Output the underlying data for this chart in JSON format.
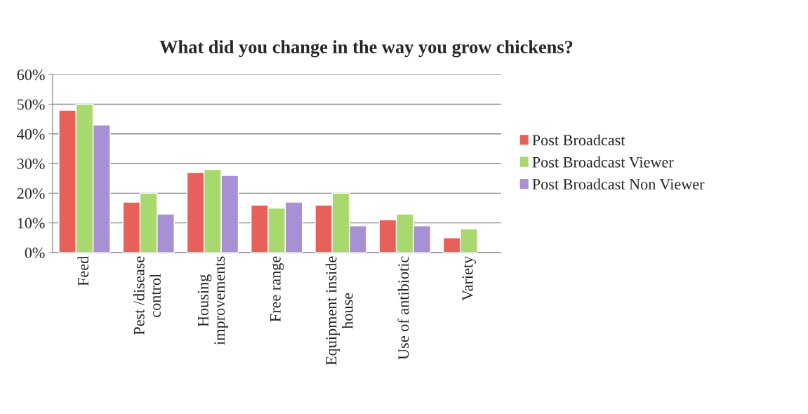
{
  "chart_data": {
    "type": "bar",
    "title": "What did you change in the way you grow chickens?",
    "categories": [
      "Feed",
      "Pest /disease\ncontrol",
      "Housing\nimprovements",
      "Free range",
      "Equipment inside\nhouse",
      "Use of antibiotic",
      "Variety"
    ],
    "series": [
      {
        "name": "Post Broadcast",
        "color": "#e8605a",
        "values": [
          48,
          17,
          27,
          16,
          16,
          11,
          5
        ]
      },
      {
        "name": "Post Broadcast Viewer",
        "color": "#a9d86e",
        "values": [
          50,
          20,
          28,
          15,
          20,
          13,
          8
        ]
      },
      {
        "name": "Post Broadcast Non Viewer",
        "color": "#a98fd3",
        "values": [
          43,
          13,
          26,
          17,
          9,
          9,
          null
        ]
      }
    ],
    "ylim": [
      0,
      60
    ],
    "yticks": [
      {
        "value": 0,
        "label": "0%"
      },
      {
        "value": 10,
        "label": "10%"
      },
      {
        "value": 20,
        "label": "20%"
      },
      {
        "value": 30,
        "label": "30%"
      },
      {
        "value": 40,
        "label": "40%"
      },
      {
        "value": 50,
        "label": "50%"
      },
      {
        "value": 60,
        "label": "60%"
      }
    ],
    "grid": "y",
    "legend": "right"
  }
}
